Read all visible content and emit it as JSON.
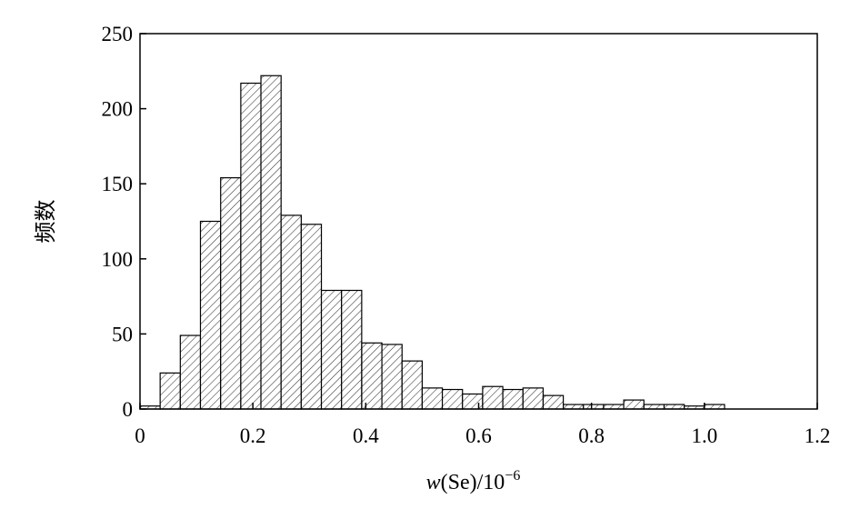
{
  "chart_data": {
    "type": "bar",
    "title": "",
    "xlabel": {
      "prefix": "w",
      "main": "(Se)/10",
      "exponent": "−6"
    },
    "ylabel": "频数",
    "xlim": [
      0,
      1.2
    ],
    "ylim": [
      0,
      250
    ],
    "x_ticks": [
      "0",
      "0.2",
      "0.4",
      "0.6",
      "0.8",
      "1.0",
      "1.2"
    ],
    "y_ticks": [
      "0",
      "50",
      "100",
      "150",
      "200",
      "250"
    ],
    "bin_width": 0.0357,
    "bin_starts": [
      0,
      0.0357,
      0.0714,
      0.1071,
      0.1429,
      0.1786,
      0.2143,
      0.25,
      0.2857,
      0.3214,
      0.3571,
      0.3929,
      0.4286,
      0.4643,
      0.5,
      0.5357,
      0.5714,
      0.6071,
      0.6429,
      0.6786,
      0.7143,
      0.75,
      0.7857,
      0.8214,
      0.8571,
      0.8929,
      0.9286,
      0.9643,
      1.0
    ],
    "values": [
      2,
      24,
      49,
      125,
      154,
      217,
      222,
      129,
      123,
      79,
      79,
      44,
      43,
      32,
      14,
      13,
      10,
      15,
      13,
      14,
      9,
      3,
      3,
      3,
      6,
      3,
      3,
      2,
      3
    ],
    "grid": false,
    "bar_fill": "hatched",
    "colors": {
      "bar_edge": "#000000",
      "hatch": "#333333",
      "axis": "#000000"
    }
  }
}
